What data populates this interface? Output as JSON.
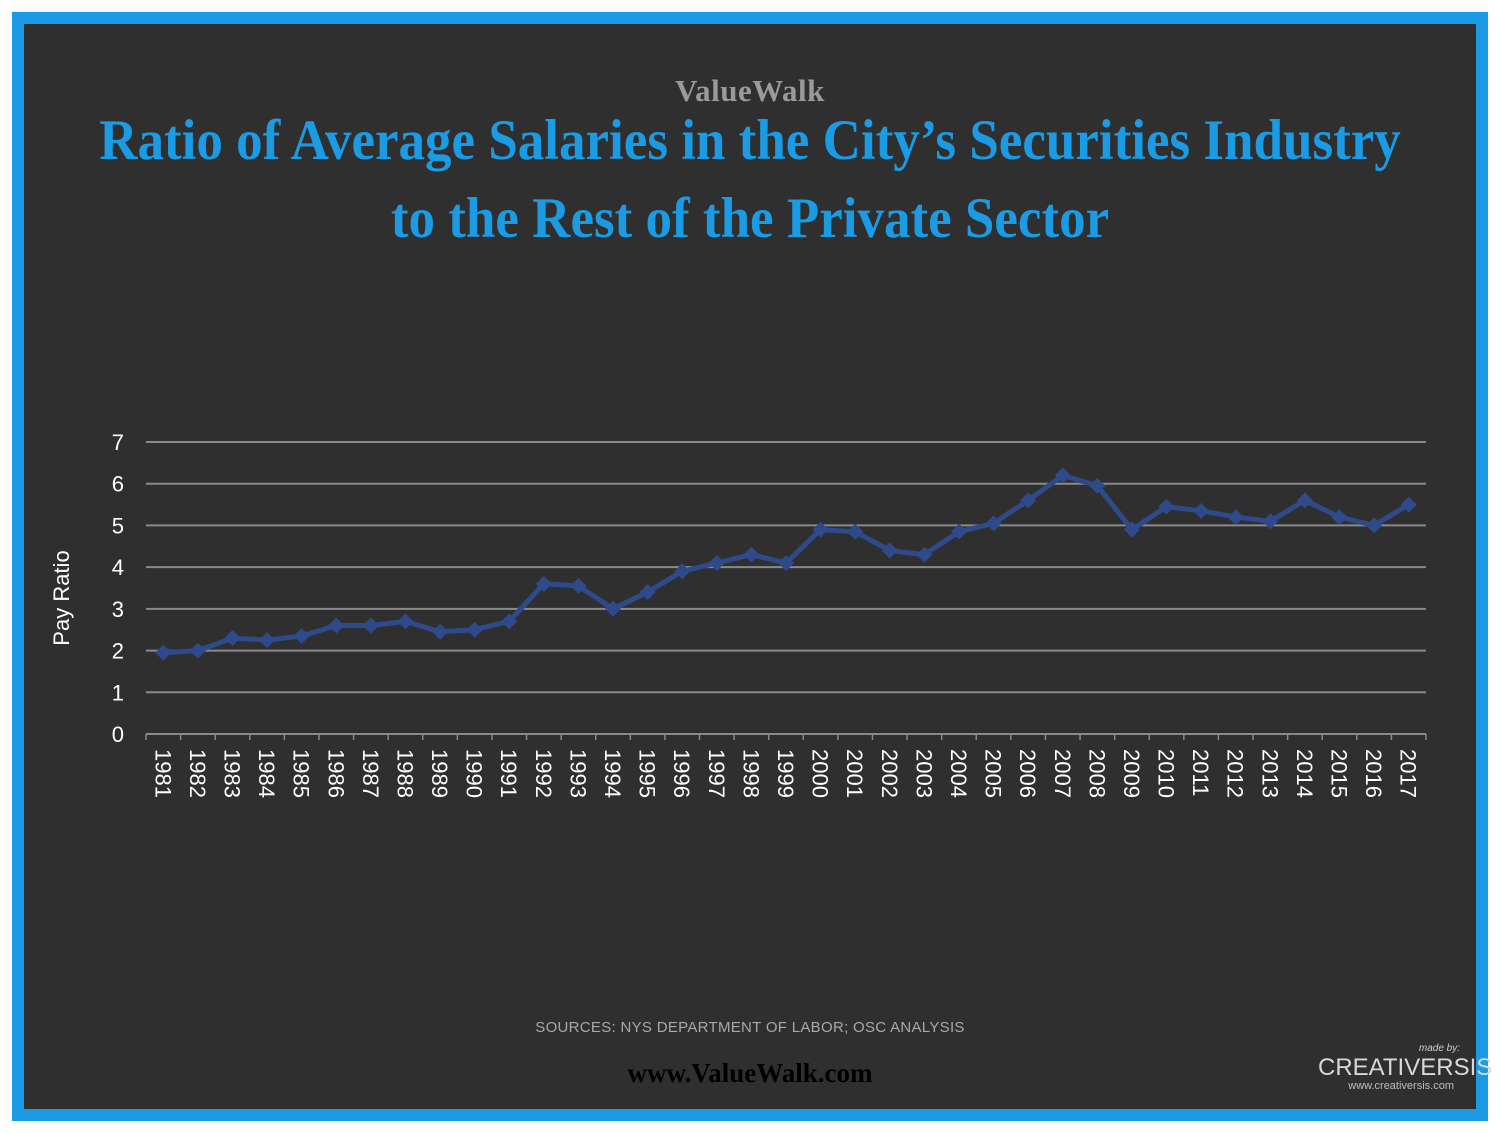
{
  "header": {
    "brand": "ValueWalk",
    "title_line1": "Ratio of Average Salaries in the City’s Securities Industry",
    "title_line2": "to the Rest of the Private Sector"
  },
  "footer": {
    "sources": "SOURCES: NYS DEPARTMENT OF LABOR; OSC ANALYSIS",
    "website": "www.ValueWalk.com",
    "maker_label": "made by:",
    "maker_logo": "CREATIVERSIS",
    "maker_url": "www.creativersis.com"
  },
  "colors": {
    "frame": "#1a9be3",
    "background": "#2f2f2f",
    "series": "#2e4a8a",
    "gridline": "#8a8a8a"
  },
  "chart_data": {
    "type": "line",
    "title": "Ratio of Average Salaries in the City’s Securities Industry to the Rest of the Private Sector",
    "xlabel": "",
    "ylabel": "Pay Ratio",
    "ylim": [
      0,
      7
    ],
    "yticks": [
      "0",
      "1",
      "2",
      "3",
      "4",
      "5",
      "6",
      "7"
    ],
    "grid": true,
    "legend": "none",
    "marker": "diamond",
    "categories": [
      "1981",
      "1982",
      "1983",
      "1984",
      "1985",
      "1986",
      "1987",
      "1988",
      "1989",
      "1990",
      "1991",
      "1992",
      "1993",
      "1994",
      "1995",
      "1996",
      "1997",
      "1998",
      "1999",
      "2000",
      "2001",
      "2002",
      "2003",
      "2004",
      "2005",
      "2006",
      "2007",
      "2008",
      "2009",
      "2010",
      "2011",
      "2012",
      "2013",
      "2014",
      "2015",
      "2016",
      "2017"
    ],
    "series": [
      {
        "values": [
          1.95,
          2.0,
          2.3,
          2.25,
          2.35,
          2.6,
          2.6,
          2.7,
          2.45,
          2.5,
          2.7,
          3.6,
          3.55,
          3.0,
          3.4,
          3.9,
          4.1,
          4.3,
          4.1,
          4.9,
          4.85,
          4.4,
          4.3,
          4.85,
          5.05,
          5.6,
          6.2,
          5.95,
          4.9,
          5.45,
          5.35,
          5.2,
          5.1,
          5.6,
          5.2,
          5.0,
          5.5
        ]
      }
    ]
  }
}
